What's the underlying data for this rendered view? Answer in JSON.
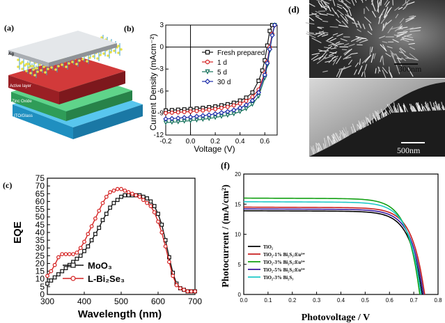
{
  "panels": {
    "a": {
      "label": "(a)",
      "layers": [
        "Ag",
        "Active layer",
        "Zinc Oxide",
        "ITO/Glass"
      ],
      "colors": {
        "ag": "#cfd3d8",
        "active": "#b5282e",
        "zno": "#3eb36a",
        "ito": "#2ea9d8",
        "nano": "#e8e04a",
        "nano2": "#3fa0c8"
      }
    },
    "d": {
      "label": "(d)",
      "scale_top": "300nm",
      "scale_bottom": "500nm"
    }
  },
  "chart_data": [
    {
      "id": "b",
      "panel_label": "(b)",
      "type": "line",
      "title": "",
      "xlabel": "Voltage (V)",
      "ylabel": "Current Density (mAcm⁻²)",
      "xlim": [
        -0.2,
        0.7
      ],
      "ylim": [
        -12,
        3
      ],
      "xticks": [
        "-0.2",
        "0.0",
        "0.2",
        "0.4",
        "0.6"
      ],
      "xtick_values": [
        -0.2,
        0.0,
        0.2,
        0.4,
        0.6
      ],
      "yticks": [
        "3",
        "0",
        "-3",
        "-6",
        "-9",
        "-12"
      ],
      "ytick_values": [
        3,
        0,
        -3,
        -6,
        -9,
        -12
      ],
      "legend_position": "right",
      "series": [
        {
          "name": "Fresh prepared",
          "marker": "square",
          "color": "#111111",
          "x": [
            -0.2,
            -0.15,
            -0.1,
            -0.05,
            0,
            0.05,
            0.1,
            0.15,
            0.2,
            0.25,
            0.3,
            0.35,
            0.4,
            0.45,
            0.5,
            0.55,
            0.58,
            0.6,
            0.62,
            0.64,
            0.66
          ],
          "y": [
            -8.65,
            -8.6,
            -8.55,
            -8.5,
            -8.45,
            -8.38,
            -8.3,
            -8.2,
            -8.1,
            -7.95,
            -7.8,
            -7.6,
            -7.3,
            -6.9,
            -6.2,
            -4.6,
            -3.2,
            -1.8,
            0.2,
            2.2,
            3
          ]
        },
        {
          "name": "1 d",
          "marker": "circle",
          "color": "#d42020",
          "x": [
            -0.2,
            -0.15,
            -0.1,
            -0.05,
            0,
            0.05,
            0.1,
            0.15,
            0.2,
            0.25,
            0.3,
            0.35,
            0.4,
            0.45,
            0.5,
            0.55,
            0.6,
            0.62,
            0.64,
            0.66,
            0.68
          ],
          "y": [
            -9.0,
            -8.95,
            -8.9,
            -8.85,
            -8.8,
            -8.72,
            -8.65,
            -8.55,
            -8.45,
            -8.3,
            -8.15,
            -7.95,
            -7.7,
            -7.35,
            -6.8,
            -5.8,
            -3.5,
            -2.0,
            0,
            1.8,
            3
          ]
        },
        {
          "name": "5 d",
          "marker": "triangle-down",
          "color": "#14705a",
          "x": [
            -0.2,
            -0.15,
            -0.1,
            -0.05,
            0,
            0.05,
            0.1,
            0.15,
            0.2,
            0.25,
            0.3,
            0.35,
            0.4,
            0.45,
            0.5,
            0.55,
            0.6,
            0.62,
            0.64,
            0.66,
            0.68
          ],
          "y": [
            -10.3,
            -10.25,
            -10.2,
            -10.1,
            -10.05,
            -9.95,
            -9.85,
            -9.75,
            -9.6,
            -9.45,
            -9.3,
            -9.1,
            -8.8,
            -8.4,
            -7.8,
            -6.7,
            -4.2,
            -2.5,
            -0.5,
            1.5,
            3
          ]
        },
        {
          "name": "30 d",
          "marker": "diamond",
          "color": "#1b2aa8",
          "x": [
            -0.2,
            -0.15,
            -0.1,
            -0.05,
            0,
            0.05,
            0.1,
            0.15,
            0.2,
            0.25,
            0.3,
            0.35,
            0.4,
            0.45,
            0.5,
            0.55,
            0.6,
            0.62,
            0.64,
            0.66,
            0.68
          ],
          "y": [
            -9.8,
            -9.75,
            -9.7,
            -9.62,
            -9.55,
            -9.45,
            -9.35,
            -9.25,
            -9.1,
            -8.95,
            -8.8,
            -8.6,
            -8.3,
            -7.9,
            -7.3,
            -6.2,
            -3.8,
            -2.2,
            -0.3,
            1.6,
            3
          ]
        }
      ]
    },
    {
      "id": "c",
      "panel_label": "(c)",
      "type": "line",
      "title": "",
      "xlabel": "Wavelength (nm)",
      "ylabel": "EQE",
      "xlim": [
        300,
        700
      ],
      "ylim": [
        0,
        75
      ],
      "xticks": [
        "300",
        "400",
        "500",
        "600",
        "700"
      ],
      "xtick_values": [
        300,
        400,
        500,
        600,
        700
      ],
      "yticks": [
        "0",
        "5",
        "10",
        "15",
        "20",
        "25",
        "30",
        "35",
        "40",
        "45",
        "50",
        "55",
        "60",
        "65",
        "70",
        "75"
      ],
      "ytick_values": [
        0,
        5,
        10,
        15,
        20,
        25,
        30,
        35,
        40,
        45,
        50,
        55,
        60,
        65,
        70,
        75
      ],
      "legend_position": "bottom-left",
      "series": [
        {
          "name": "MoO₃",
          "marker": "square",
          "color": "#111111",
          "x": [
            300,
            310,
            320,
            330,
            340,
            350,
            360,
            370,
            380,
            390,
            400,
            410,
            420,
            430,
            440,
            450,
            460,
            470,
            480,
            490,
            500,
            510,
            520,
            530,
            540,
            550,
            560,
            570,
            580,
            590,
            600,
            610,
            620,
            630,
            640,
            650,
            660,
            670,
            680,
            690,
            700
          ],
          "y": [
            7,
            9,
            11,
            13,
            15,
            17,
            19,
            21,
            23,
            25,
            28,
            31,
            35,
            39,
            43,
            48,
            52,
            56,
            59,
            61,
            63,
            64,
            64,
            64,
            64,
            64,
            63,
            62,
            60,
            57,
            52,
            45,
            35,
            24,
            14,
            7,
            4,
            3,
            2,
            2,
            2
          ]
        },
        {
          "name": "L-Bi₂Se₃",
          "marker": "circle",
          "color": "#d42020",
          "x": [
            300,
            310,
            320,
            330,
            340,
            350,
            360,
            370,
            380,
            390,
            400,
            410,
            420,
            430,
            440,
            450,
            460,
            470,
            480,
            490,
            500,
            510,
            520,
            530,
            540,
            550,
            560,
            570,
            580,
            590,
            600,
            610,
            620,
            630,
            640,
            650,
            660,
            670,
            680,
            690,
            700
          ],
          "y": [
            12,
            15,
            19,
            24,
            26,
            26,
            26,
            26,
            27,
            30,
            34,
            39,
            44,
            49,
            54,
            59,
            63,
            66,
            67,
            68,
            68,
            67,
            66,
            65,
            64,
            63,
            61,
            59,
            57,
            53,
            47,
            40,
            31,
            21,
            12,
            6,
            4,
            3,
            2,
            2,
            2
          ]
        }
      ]
    },
    {
      "id": "f",
      "panel_label": "(f)",
      "type": "line",
      "title": "",
      "xlabel": "Photovoltage / V",
      "ylabel": "Photocurrent / (mA/cm²)",
      "xlim": [
        0.0,
        0.8
      ],
      "ylim": [
        0,
        20
      ],
      "xticks": [
        "0.0",
        "0.1",
        "0.2",
        "0.3",
        "0.4",
        "0.5",
        "0.6",
        "0.7",
        "0.8"
      ],
      "xtick_values": [
        0,
        0.1,
        0.2,
        0.3,
        0.4,
        0.5,
        0.6,
        0.7,
        0.8
      ],
      "yticks": [
        "0",
        "5",
        "10",
        "15",
        "20"
      ],
      "ytick_values": [
        0,
        5,
        10,
        15,
        20
      ],
      "legend_position": "bottom-left",
      "series": [
        {
          "name": "TiO₂",
          "color": "#000000",
          "jsc": 13.9,
          "voc": 0.735
        },
        {
          "name": "TiO₂-1% Bi₂S₃:Eu³⁺",
          "color": "#c81e1e",
          "jsc": 14.5,
          "voc": 0.745
        },
        {
          "name": "TiO₂-3% Bi₂S₃:Eu³⁺",
          "color": "#12a012",
          "jsc": 16.0,
          "voc": 0.725
        },
        {
          "name": "TiO₂-5% Bi₂S₃:Eu³⁺",
          "color": "#3a1a9e",
          "jsc": 14.2,
          "voc": 0.74
        },
        {
          "name": "TiO₂-3% Bi₂S₃",
          "color": "#1ec8c8",
          "jsc": 15.4,
          "voc": 0.73
        }
      ]
    }
  ]
}
